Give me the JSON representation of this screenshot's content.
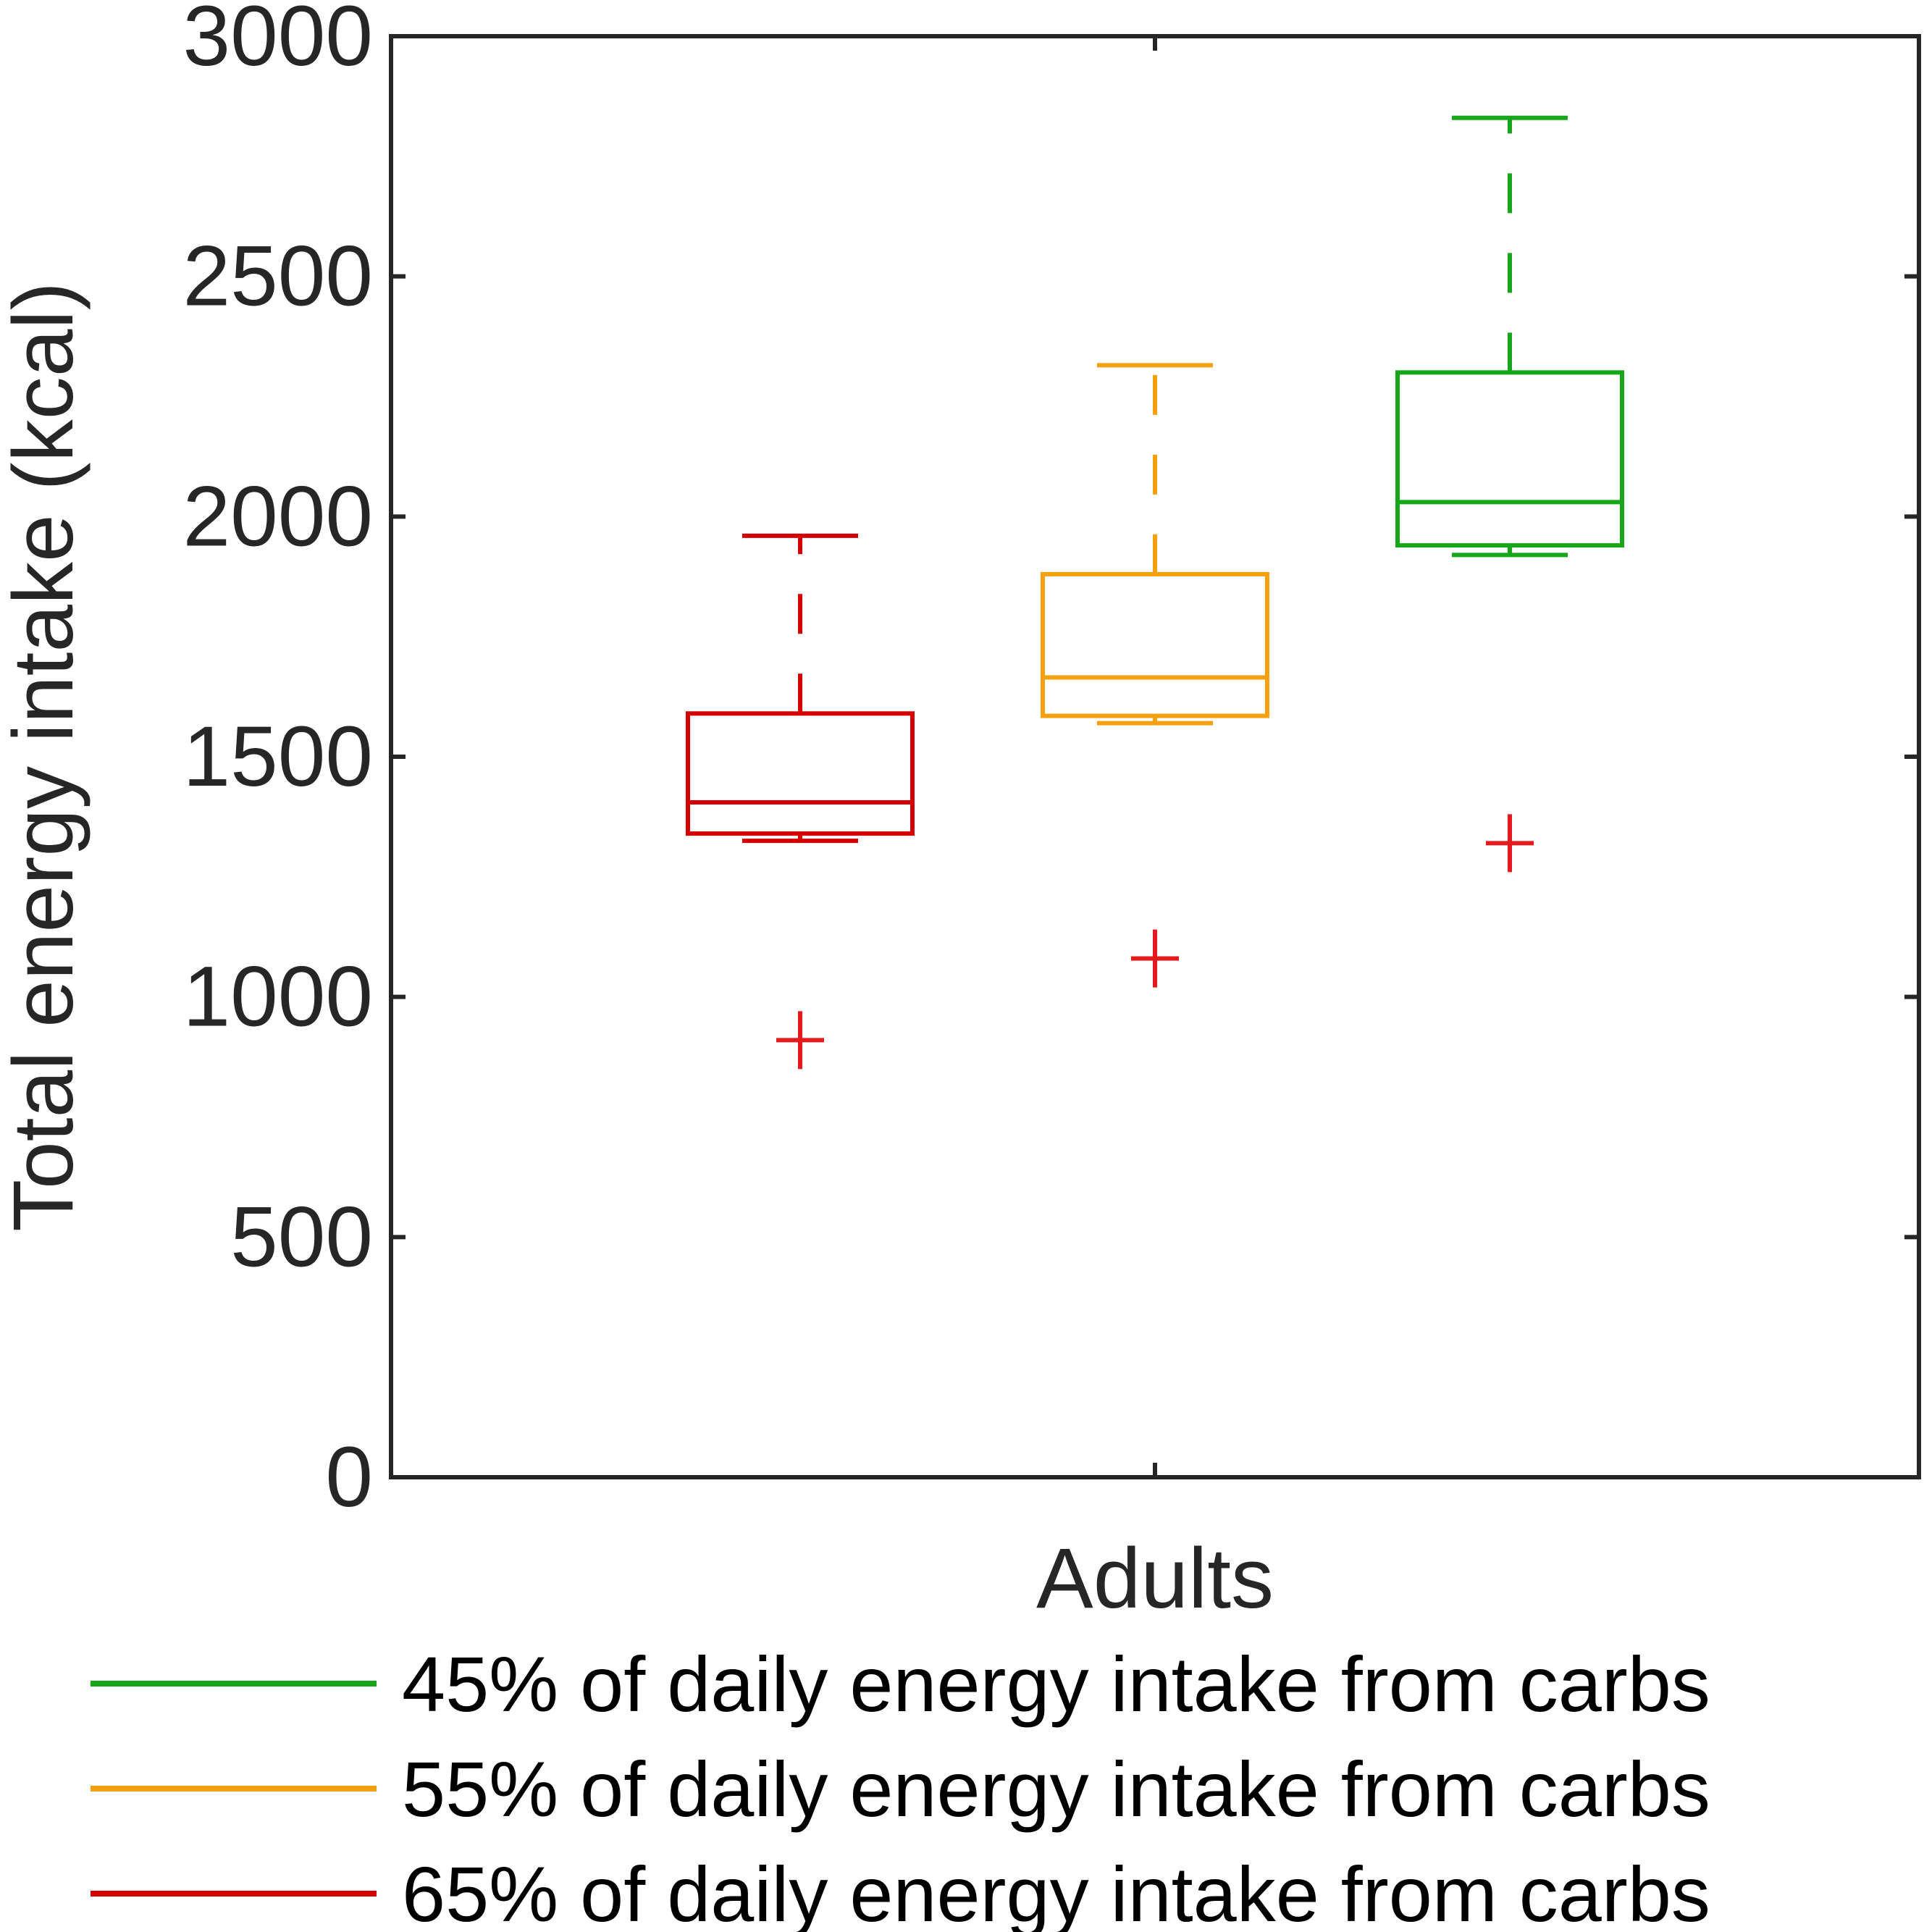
{
  "chart_data": {
    "type": "box",
    "title": "",
    "xlabel": "",
    "ylabel": "Total energy intake (kcal)",
    "ylim": [
      0,
      3000
    ],
    "yticks": [
      0,
      500,
      1000,
      1500,
      2000,
      2500,
      3000
    ],
    "categories": [
      "Adults"
    ],
    "grid": false,
    "legend_position": "bottom",
    "outlier_color": "#e41a1c",
    "series": [
      {
        "name": "65% of daily energy intake from carbs",
        "color": "#d40000",
        "whisker_low": 1325,
        "q1": 1340,
        "median": 1405,
        "q3": 1590,
        "whisker_high": 1960,
        "outliers": [
          910
        ]
      },
      {
        "name": "55% of daily energy intake from carbs",
        "color": "#f5a00e",
        "whisker_low": 1570,
        "q1": 1585,
        "median": 1665,
        "q3": 1880,
        "whisker_high": 2315,
        "outliers": [
          1080
        ]
      },
      {
        "name": "45% of daily energy intake from carbs",
        "color": "#17a61a",
        "whisker_low": 1920,
        "q1": 1940,
        "median": 2030,
        "q3": 2300,
        "whisker_high": 2830,
        "outliers": [
          1320
        ]
      }
    ],
    "legend": [
      {
        "label": "45% of daily energy intake from carbs",
        "color": "#17a61a"
      },
      {
        "label": "55% of daily energy intake from carbs",
        "color": "#f5a00e"
      },
      {
        "label": "65% of daily energy intake from carbs",
        "color": "#d40000"
      }
    ]
  }
}
